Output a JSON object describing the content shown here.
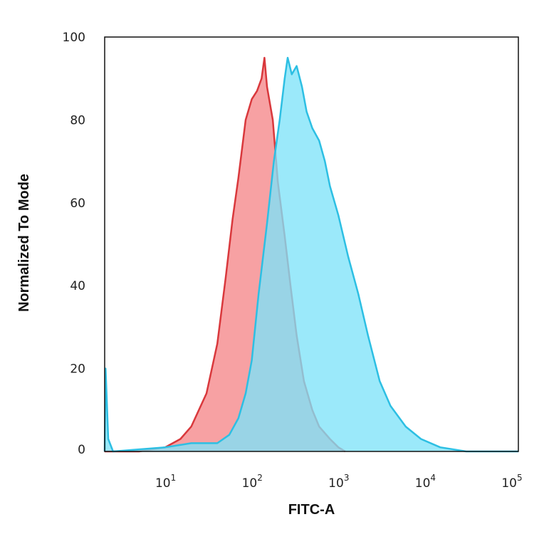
{
  "chart_data": {
    "type": "area",
    "xlabel": "FITC-A",
    "ylabel": "Normalized To Mode",
    "xscale": "log",
    "xlim": [
      2,
      120000
    ],
    "ylim": [
      0,
      100
    ],
    "xticks": [
      {
        "base": "10",
        "exp": "1",
        "value": 10
      },
      {
        "base": "10",
        "exp": "2",
        "value": 100
      },
      {
        "base": "10",
        "exp": "3",
        "value": 1000
      },
      {
        "base": "10",
        "exp": "4",
        "value": 10000
      },
      {
        "base": "10",
        "exp": "5",
        "value": 100000
      }
    ],
    "yticks": [
      0,
      20,
      40,
      60,
      80,
      100
    ],
    "grid": false,
    "series": [
      {
        "fill": "#f7a1a3",
        "stroke": "#d9383c",
        "points": [
          [
            2,
            0
          ],
          [
            5,
            0
          ],
          [
            10,
            1
          ],
          [
            15,
            3
          ],
          [
            20,
            6
          ],
          [
            30,
            14
          ],
          [
            40,
            26
          ],
          [
            50,
            42
          ],
          [
            60,
            56
          ],
          [
            70,
            66
          ],
          [
            85,
            80
          ],
          [
            100,
            85
          ],
          [
            115,
            87
          ],
          [
            130,
            90
          ],
          [
            140,
            95
          ],
          [
            150,
            88
          ],
          [
            175,
            80
          ],
          [
            200,
            65
          ],
          [
            240,
            52
          ],
          [
            280,
            40
          ],
          [
            330,
            28
          ],
          [
            400,
            17
          ],
          [
            500,
            10
          ],
          [
            600,
            6
          ],
          [
            800,
            3
          ],
          [
            1000,
            1
          ],
          [
            1200,
            0
          ]
        ]
      },
      {
        "fill": "#7fe3f8",
        "stroke": "#2dbfe3",
        "points": [
          [
            2,
            0
          ],
          [
            2.05,
            20
          ],
          [
            2.2,
            3
          ],
          [
            2.5,
            0
          ],
          [
            10,
            1
          ],
          [
            20,
            2
          ],
          [
            40,
            2
          ],
          [
            55,
            4
          ],
          [
            70,
            8
          ],
          [
            85,
            14
          ],
          [
            100,
            22
          ],
          [
            120,
            38
          ],
          [
            150,
            55
          ],
          [
            180,
            70
          ],
          [
            210,
            80
          ],
          [
            240,
            90
          ],
          [
            260,
            95
          ],
          [
            290,
            91
          ],
          [
            330,
            93
          ],
          [
            380,
            88
          ],
          [
            430,
            82
          ],
          [
            500,
            78
          ],
          [
            600,
            75
          ],
          [
            700,
            70
          ],
          [
            800,
            64
          ],
          [
            1000,
            57
          ],
          [
            1300,
            47
          ],
          [
            1700,
            38
          ],
          [
            2200,
            28
          ],
          [
            3000,
            17
          ],
          [
            4000,
            11
          ],
          [
            6000,
            6
          ],
          [
            9000,
            3
          ],
          [
            15000,
            1
          ],
          [
            30000,
            0
          ],
          [
            120000,
            0
          ]
        ]
      }
    ]
  }
}
